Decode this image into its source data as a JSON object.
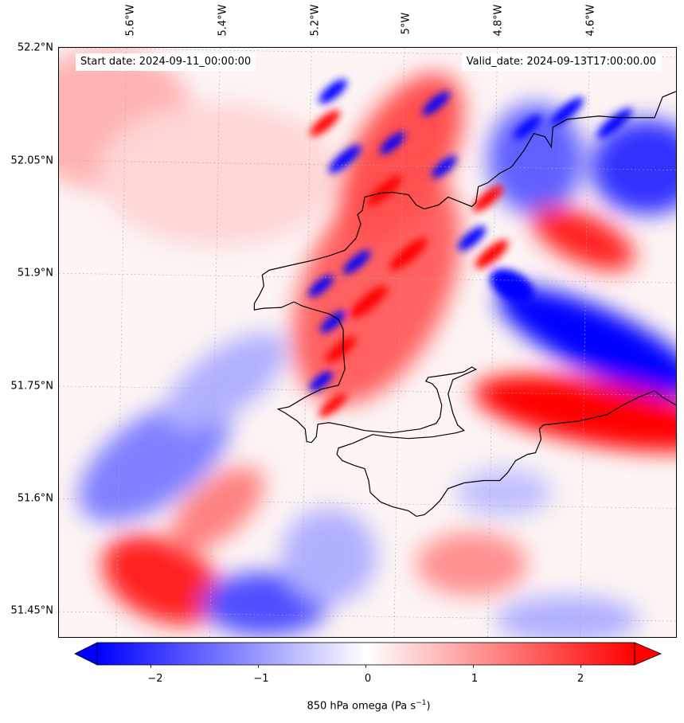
{
  "header": {
    "start_date": "Start date: 2024-09-11_00:00:00",
    "valid_date": "Valid_date: 2024-09-13T17:00:00.00"
  },
  "map": {
    "longitude_ticks": [
      "5.6°W",
      "5.4°W",
      "5.2°W",
      "5°W",
      "4.8°W",
      "4.6°W"
    ],
    "latitude_ticks": [
      "52.2°N",
      "52.05°N",
      "51.9°N",
      "51.75°N",
      "51.6°N",
      "51.45°N"
    ],
    "colors": {
      "negative": "#0000ff",
      "zero": "#ffffff",
      "positive": "#ff0000",
      "coastline": "#000000",
      "gridline": "#aaaaaa"
    }
  },
  "colorbar": {
    "ticks": [
      "−2",
      "−1",
      "0",
      "1",
      "2"
    ],
    "tick_values": [
      -2,
      -1,
      0,
      1,
      2
    ],
    "range": [
      -2.5,
      2.5
    ],
    "label_main": "850 hPa omega (Pa s",
    "label_exp": "−1",
    "label_end": ")",
    "extend": "both"
  }
}
